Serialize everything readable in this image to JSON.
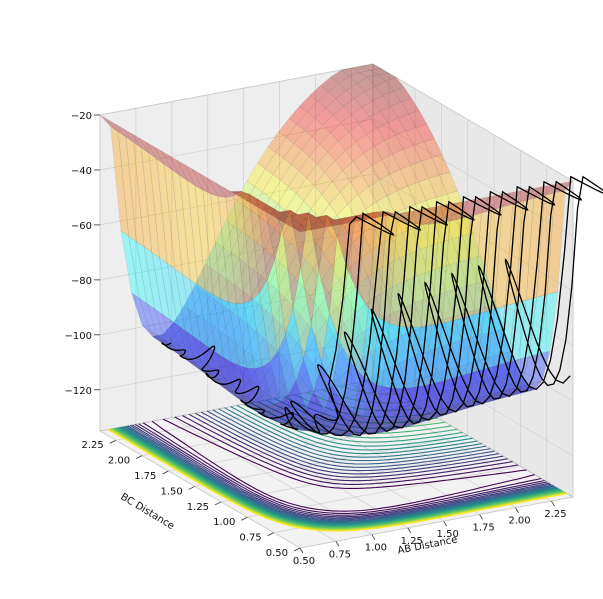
{
  "chart_data": {
    "type": "surface",
    "projection": "3d",
    "xlabel": "AB Distance",
    "ylabel": "BC Distance",
    "zlabel": "",
    "xlim": [
      0.5,
      2.4
    ],
    "ylim": [
      0.5,
      2.4
    ],
    "zlim": [
      -135,
      -20
    ],
    "x_ticks": [
      "0.50",
      "0.75",
      "1.00",
      "1.25",
      "1.50",
      "1.75",
      "2.00",
      "2.25"
    ],
    "y_ticks": [
      "0.50",
      "0.75",
      "1.00",
      "1.25",
      "1.50",
      "1.75",
      "2.00",
      "2.25"
    ],
    "z_ticks": [
      "-20",
      "-40",
      "-60",
      "-80",
      "-100",
      "-120"
    ],
    "z_tick_values": [
      -20,
      -40,
      -60,
      -80,
      -100,
      -120
    ],
    "surface": {
      "function": "LEPS potential energy surface",
      "colormap": "jet",
      "alpha": 0.35,
      "clip_max": -20
    },
    "contours": {
      "colormap": "viridis",
      "offset": -135
    },
    "trajectory": {
      "color": "#000000",
      "description": "oscillating reactive path"
    },
    "grid": true
  }
}
